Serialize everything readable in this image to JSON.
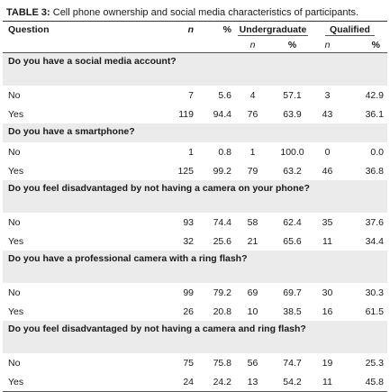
{
  "caption": {
    "label": "TABLE 3:",
    "text": " Cell phone ownership and social media characteristics of participants."
  },
  "headers": {
    "question": "Question",
    "n": "n",
    "pct": "%",
    "undergraduate": "Undergraduate",
    "qualified": "Qualified",
    "ug_n": "n",
    "ug_pct": "%",
    "q_n": "n",
    "q_pct": "%"
  },
  "questions": [
    {
      "text": "Do you have a social media account?",
      "rows": [
        {
          "label": "No",
          "n": "7",
          "pct": "5.6",
          "ug_n": "4",
          "ug_pct": "57.1",
          "q_n": "3",
          "q_pct": "42.9"
        },
        {
          "label": "Yes",
          "n": "119",
          "pct": "94.4",
          "ug_n": "76",
          "ug_pct": "63.9",
          "q_n": "43",
          "q_pct": "36.1"
        }
      ]
    },
    {
      "text": "Do you have a smartphone?",
      "rows": [
        {
          "label": "No",
          "n": "1",
          "pct": "0.8",
          "ug_n": "1",
          "ug_pct": "100.0",
          "q_n": "0",
          "q_pct": "0.0"
        },
        {
          "label": "Yes",
          "n": "125",
          "pct": "99.2",
          "ug_n": "79",
          "ug_pct": "63.2",
          "q_n": "46",
          "q_pct": "36.8"
        }
      ]
    },
    {
      "text": "Do you feel disadvantaged by not having a camera on your phone?",
      "rows": [
        {
          "label": "No",
          "n": "93",
          "pct": "74.4",
          "ug_n": "58",
          "ug_pct": "62.4",
          "q_n": "35",
          "q_pct": "37.6"
        },
        {
          "label": "Yes",
          "n": "32",
          "pct": "25.6",
          "ug_n": "21",
          "ug_pct": "65.6",
          "q_n": "11",
          "q_pct": "34.4"
        }
      ]
    },
    {
      "text": "Do you have a professional camera with a ring flash?",
      "rows": [
        {
          "label": "No",
          "n": "99",
          "pct": "79.2",
          "ug_n": "69",
          "ug_pct": "69.7",
          "q_n": "30",
          "q_pct": "30.3"
        },
        {
          "label": "Yes",
          "n": "26",
          "pct": "20.8",
          "ug_n": "10",
          "ug_pct": "38.5",
          "q_n": "16",
          "q_pct": "61.5"
        }
      ]
    },
    {
      "text": "Do you feel disadvantaged by not having a camera and ring flash?",
      "rows": [
        {
          "label": "No",
          "n": "75",
          "pct": "75.8",
          "ug_n": "56",
          "ug_pct": "74.7",
          "q_n": "19",
          "q_pct": "25.3"
        },
        {
          "label": "Yes",
          "n": "24",
          "pct": "24.2",
          "ug_n": "13",
          "ug_pct": "54.2",
          "q_n": "11",
          "q_pct": "45.8"
        }
      ]
    }
  ]
}
